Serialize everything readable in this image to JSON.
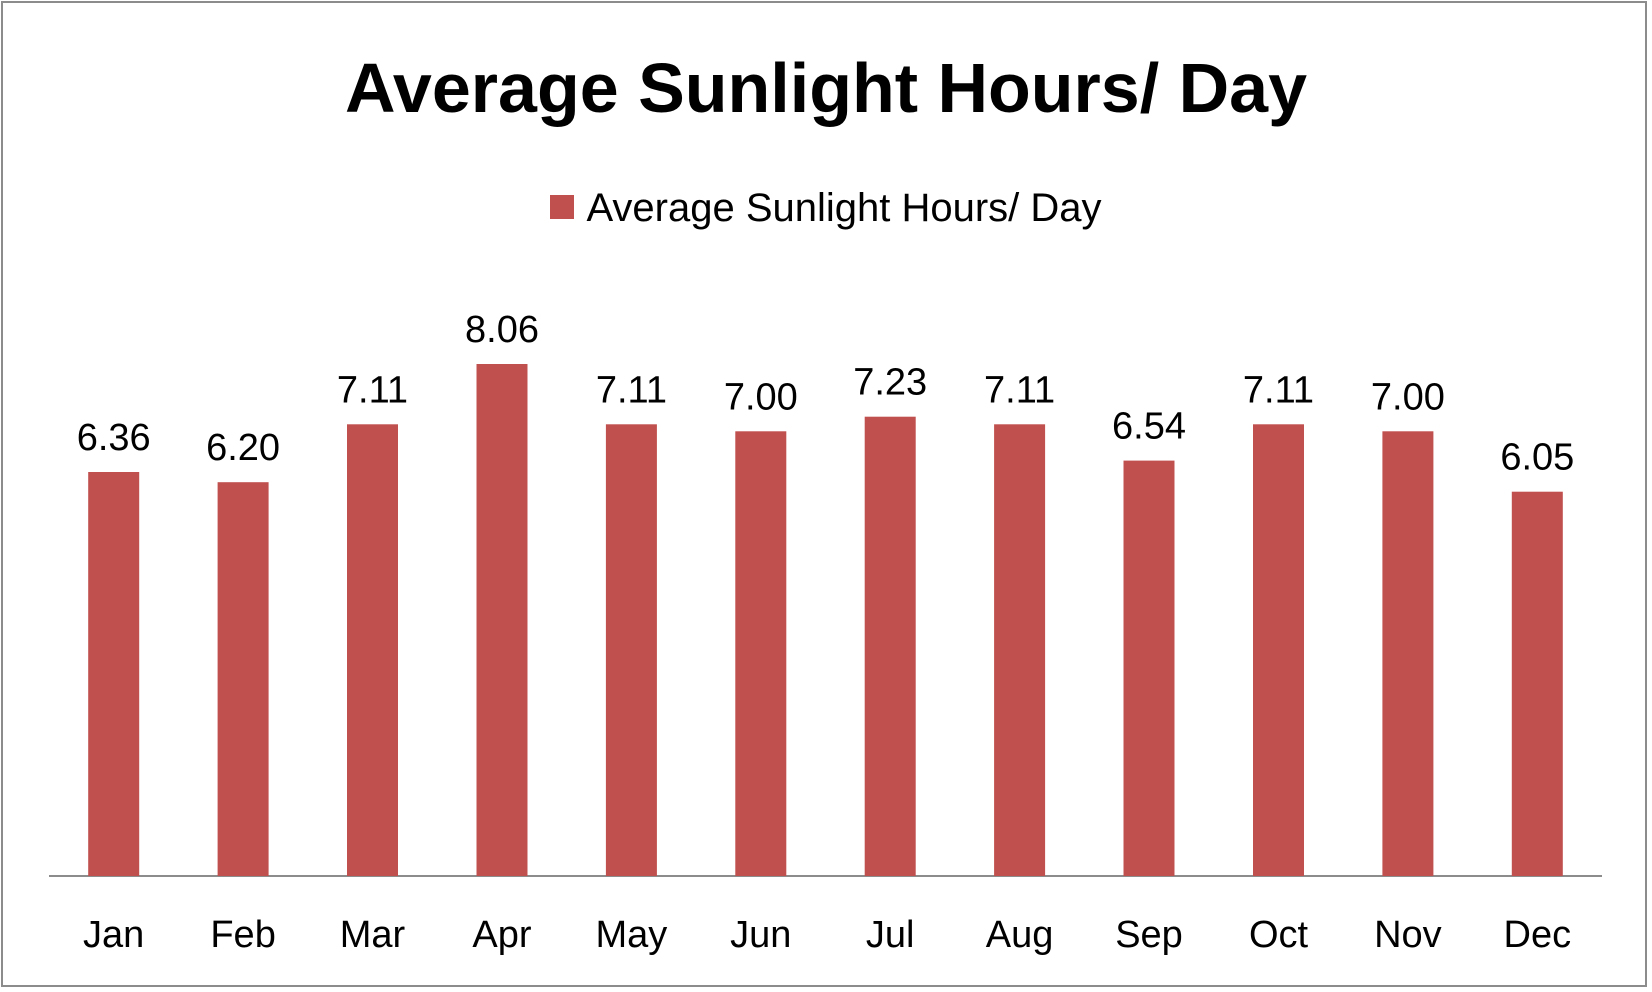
{
  "chart_data": {
    "type": "bar",
    "title": "Average Sunlight Hours/ Day",
    "categories": [
      "Jan",
      "Feb",
      "Mar",
      "Apr",
      "May",
      "Jun",
      "Jul",
      "Aug",
      "Sep",
      "Oct",
      "Nov",
      "Dec"
    ],
    "series": [
      {
        "name": "Average Sunlight Hours/ Day",
        "values": [
          6.36,
          6.2,
          7.11,
          8.06,
          7.11,
          7.0,
          7.23,
          7.11,
          6.54,
          7.11,
          7.0,
          6.05
        ],
        "labels": [
          "6.36",
          "6.20",
          "7.11",
          "8.06",
          "7.11",
          "7.00",
          "7.23",
          "7.11",
          "6.54",
          "7.11",
          "7.00",
          "6.05"
        ],
        "color": "#c0504d"
      }
    ],
    "xlabel": "",
    "ylabel": "",
    "ylim": [
      0,
      9
    ],
    "grid": false,
    "legend_position": "top"
  }
}
